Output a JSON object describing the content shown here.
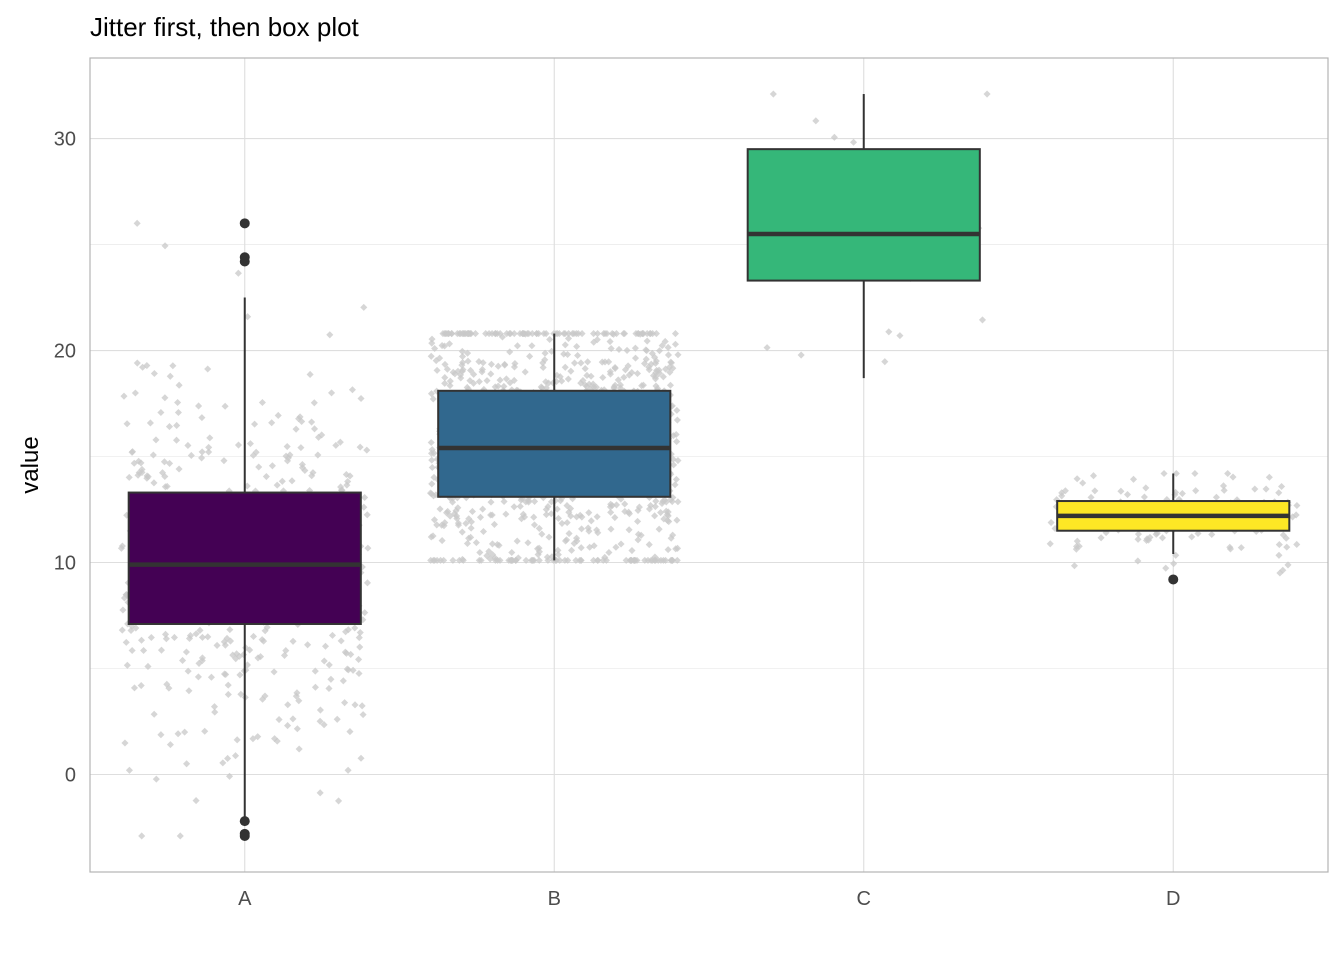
{
  "chart_data": {
    "type": "box",
    "title": "Jitter first, then box plot",
    "xlabel": "",
    "ylabel": "value",
    "ylim": [
      -4.6,
      33.8
    ],
    "yticks": [
      0,
      10,
      20,
      30
    ],
    "grid": true,
    "legend": "none",
    "categories": [
      "A",
      "B",
      "C",
      "D"
    ],
    "boxes": [
      {
        "category": "A",
        "color": "#440154",
        "q1": 7.1,
        "median": 9.9,
        "q3": 13.3,
        "whisker_low": -2.2,
        "whisker_high": 22.5,
        "outliers": [
          -2.2,
          -2.8,
          -2.9,
          24.2,
          24.4,
          26.0
        ],
        "jitter_n": 500,
        "jitter_min": -2.9,
        "jitter_max": 26.0
      },
      {
        "category": "B",
        "color": "#31688E",
        "q1": 13.1,
        "median": 15.4,
        "q3": 18.1,
        "whisker_low": 10.1,
        "whisker_high": 20.8,
        "outliers": [],
        "jitter_n": 1000,
        "jitter_min": 10.1,
        "jitter_max": 20.8
      },
      {
        "category": "C",
        "color": "#35B779",
        "q1": 23.3,
        "median": 25.5,
        "q3": 29.5,
        "whisker_low": 18.7,
        "whisker_high": 32.1,
        "outliers": [],
        "jitter_n": 20,
        "jitter_min": 18.7,
        "jitter_max": 32.1
      },
      {
        "category": "D",
        "color": "#FDE725",
        "q1": 11.5,
        "median": 12.2,
        "q3": 12.9,
        "whisker_low": 10.4,
        "whisker_high": 14.2,
        "outliers": [
          9.2
        ],
        "jitter_n": 150,
        "jitter_min": 9.2,
        "jitter_max": 14.2
      }
    ]
  }
}
